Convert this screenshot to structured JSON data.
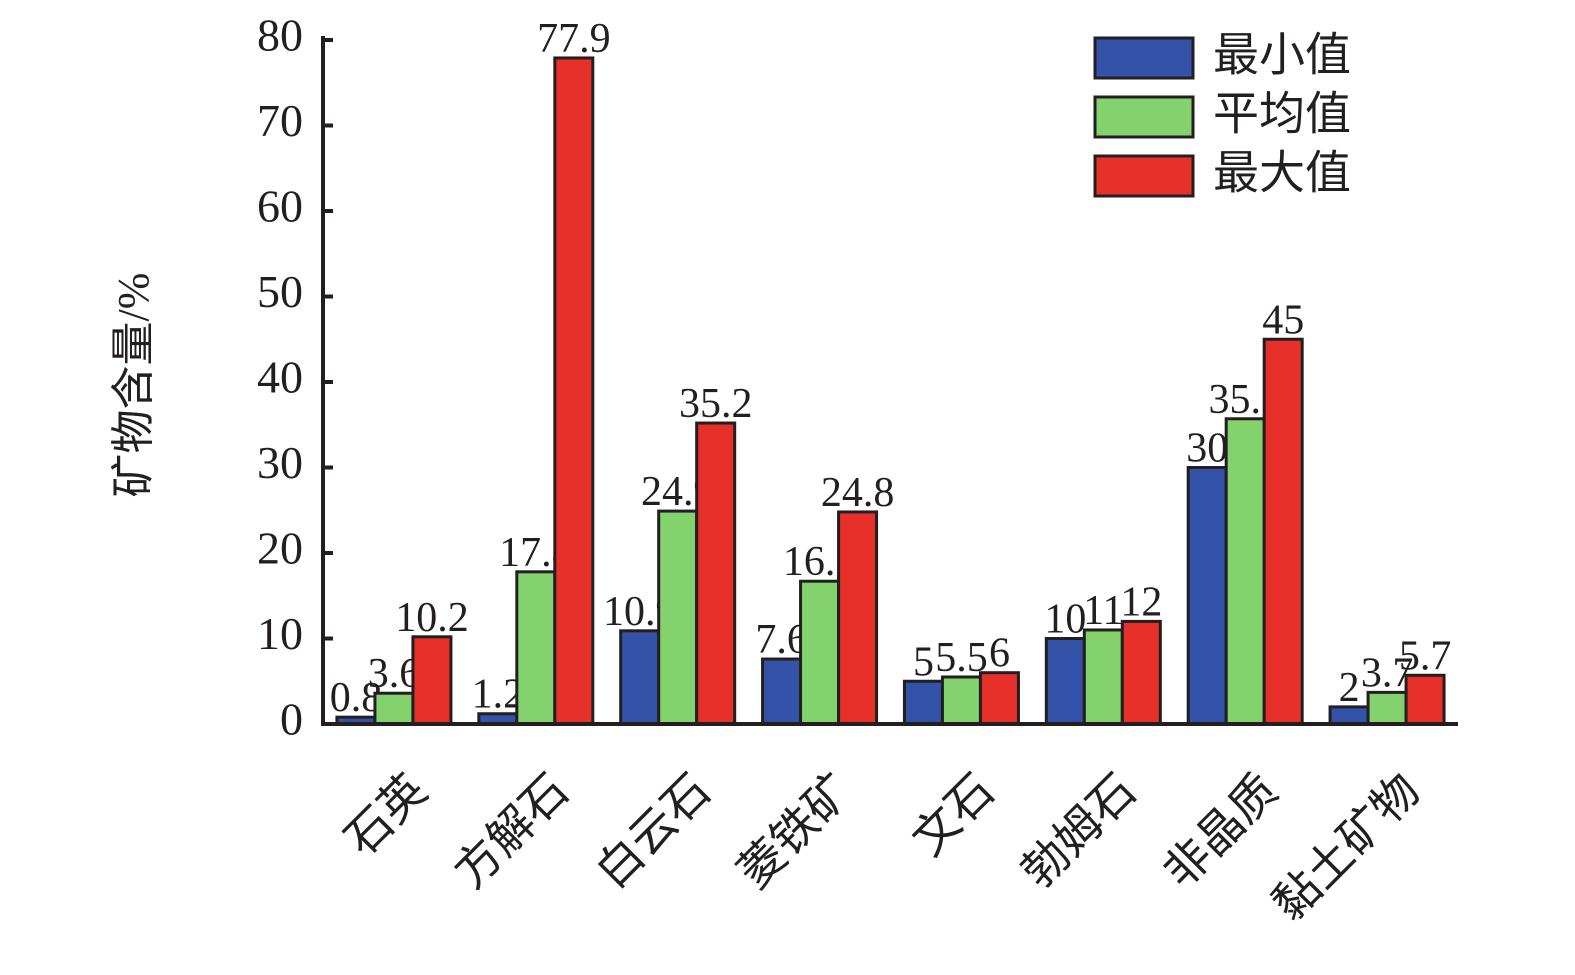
{
  "chart_data": {
    "type": "bar",
    "y_label": "矿物含量/%",
    "categories": [
      "石英",
      "方解石",
      "白云石",
      "菱铁矿",
      "文石",
      "勃姆石",
      "非晶质",
      "黏土矿物"
    ],
    "series": [
      {
        "name": "最小值",
        "color": "#3453a8",
        "values": [
          0.8,
          1.2,
          10.9,
          7.6,
          5,
          10,
          30,
          2
        ]
      },
      {
        "name": "平均值",
        "color": "#84d26e",
        "values": [
          3.6,
          17.8,
          24.9,
          16.7,
          5.5,
          11,
          35.7,
          3.7
        ]
      },
      {
        "name": "最大值",
        "color": "#e8302a",
        "values": [
          10.2,
          77.9,
          35.2,
          24.8,
          6,
          12,
          45,
          5.7
        ]
      }
    ],
    "ylim": [
      0,
      80
    ],
    "yticks": [
      0,
      10,
      20,
      30,
      40,
      50,
      60,
      70,
      80
    ],
    "legend": "upper right"
  }
}
